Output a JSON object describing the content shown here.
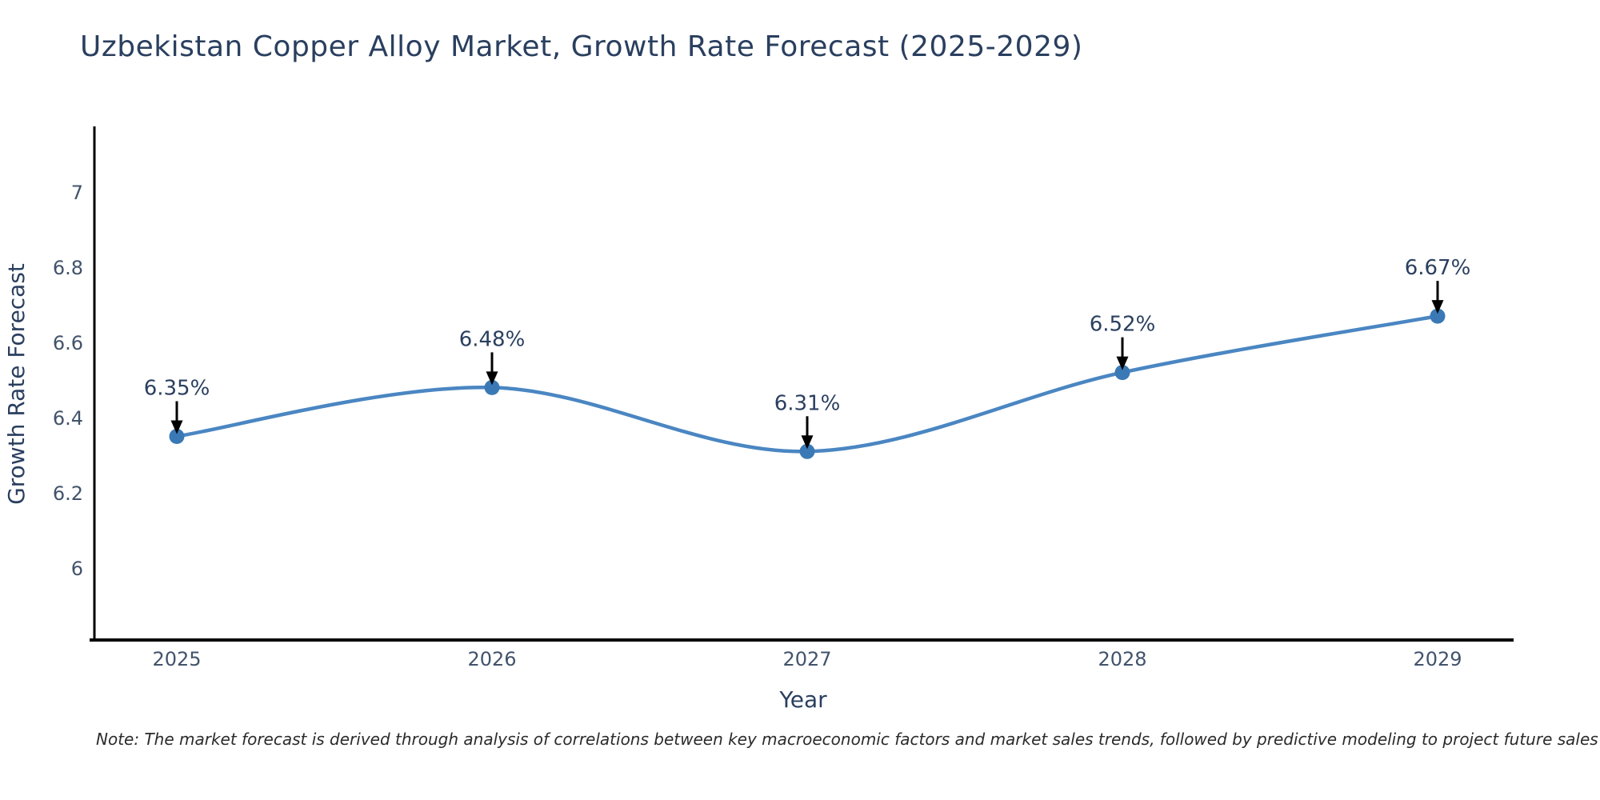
{
  "title": "Uzbekistan Copper Alloy Market, Growth Rate Forecast (2025-2029)",
  "note": "Note: The market forecast is derived through analysis of correlations between key macroeconomic factors and market sales trends, followed by predictive modeling to project future sales",
  "chart_data": {
    "type": "line",
    "title": "Uzbekistan Copper Alloy Market, Growth Rate Forecast (2025-2029)",
    "xlabel": "Year",
    "ylabel": "Growth Rate Forecast",
    "x": [
      2025,
      2026,
      2027,
      2028,
      2029
    ],
    "series": [
      {
        "name": "Growth Rate Forecast",
        "values": [
          6.35,
          6.48,
          6.31,
          6.52,
          6.67
        ]
      }
    ],
    "point_labels": [
      "6.35%",
      "6.48%",
      "6.31%",
      "6.52%",
      "6.67%"
    ],
    "yticks": [
      6,
      6.2,
      6.4,
      6.6,
      6.8,
      7
    ],
    "ylim": [
      5.8,
      7.17
    ],
    "xlim": [
      2024.74,
      2029.24
    ],
    "grid": false,
    "legend": "none",
    "smooth": true,
    "line_color": "#4a86c2",
    "marker_color": "#3a79b5",
    "annotation_arrow_color": "#000000",
    "axis_color": "#000000",
    "text_color": "#2a3f5f"
  }
}
